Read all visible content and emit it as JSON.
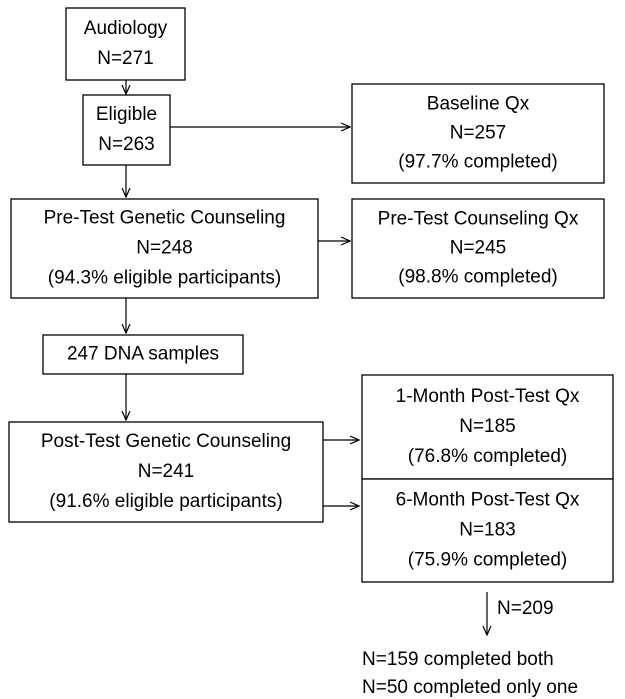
{
  "nodes": [
    {
      "lines": [
        "Audiology",
        "N=271"
      ]
    },
    {
      "lines": [
        "Eligible",
        "N=263"
      ]
    },
    {
      "lines": [
        "Baseline Qx",
        "N=257",
        "(97.7% completed)"
      ]
    },
    {
      "lines": [
        "Pre-Test Genetic Counseling",
        "N=248",
        "(94.3% eligible participants)"
      ]
    },
    {
      "lines": [
        "Pre-Test Counseling Qx",
        "N=245",
        "(98.8% completed)"
      ]
    },
    {
      "lines": [
        "247 DNA samples"
      ]
    },
    {
      "lines": [
        "Post-Test Genetic Counseling",
        "N=241",
        "(91.6% eligible participants)"
      ]
    },
    {
      "lines": [
        "1-Month Post-Test Qx",
        "N=185",
        "(76.8% completed)"
      ]
    },
    {
      "lines": [
        "6-Month Post-Test Qx",
        "N=183",
        "(75.9% completed)"
      ]
    }
  ],
  "arrow_label": "N=209",
  "footer": [
    "N=159 completed both",
    "N=50 completed only one"
  ]
}
